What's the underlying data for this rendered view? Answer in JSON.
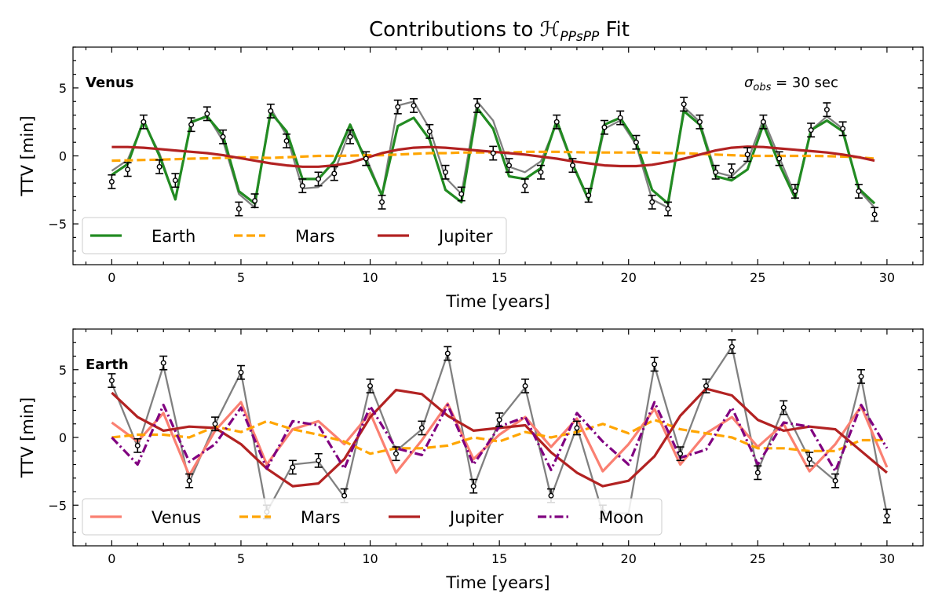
{
  "title": "Contributions to ℋ",
  "title_sub": "PPsPP",
  "title_suffix": " Fit",
  "chart_data": [
    {
      "type": "line",
      "panel_label": "Venus",
      "annotation": {
        "sigma": "σ",
        "sub": "obs",
        "text": " = 30 sec"
      },
      "xlabel": "Time [years]",
      "ylabel": "TTV [min]",
      "xlim": [
        -1.5,
        31.4
      ],
      "ylim": [
        -8,
        8
      ],
      "xticks": [
        0,
        5,
        10,
        15,
        20,
        25,
        30
      ],
      "yticks": [
        -5,
        0,
        5
      ],
      "grid": false,
      "legend": {
        "placement": "lower-left",
        "columns": 3
      },
      "x": [
        0,
        0.615,
        1.23,
        1.845,
        2.46,
        3.075,
        3.69,
        4.305,
        4.92,
        5.535,
        6.15,
        6.765,
        7.38,
        7.995,
        8.61,
        9.225,
        9.84,
        10.455,
        11.07,
        11.685,
        12.3,
        12.915,
        13.53,
        14.145,
        14.76,
        15.375,
        15.99,
        16.605,
        17.22,
        17.835,
        18.45,
        19.065,
        19.68,
        20.295,
        20.91,
        21.525,
        22.14,
        22.755,
        23.37,
        23.985,
        24.6,
        25.215,
        25.83,
        26.445,
        27.06,
        27.675,
        28.29,
        28.905,
        29.52
      ],
      "observed": [
        -1.9,
        -1.0,
        2.5,
        -0.8,
        -1.8,
        2.3,
        3.1,
        1.4,
        -3.9,
        -3.3,
        3.3,
        1.1,
        -2.2,
        -1.7,
        -1.3,
        1.4,
        -0.2,
        -3.4,
        3.6,
        3.7,
        1.8,
        -1.2,
        -2.8,
        3.7,
        0.2,
        -0.7,
        -2.2,
        -1.2,
        2.5,
        -0.7,
        -2.9,
        2.1,
        2.8,
        1.0,
        -3.4,
        -3.9,
        3.8,
        2.5,
        -1.2,
        -1.1,
        0.1,
        2.5,
        -0.2,
        -2.6,
        1.9,
        3.4,
        2.0,
        -2.6,
        -4.3
      ],
      "model": [
        -1.1,
        -0.3,
        2.5,
        0.2,
        -3.2,
        2.4,
        3.0,
        1.1,
        -2.8,
        -3.8,
        3.5,
        1.5,
        -2.4,
        -2.3,
        -1.2,
        1.9,
        -0.1,
        -2.9,
        3.7,
        4.0,
        2.0,
        -1.6,
        -2.8,
        4.0,
        2.6,
        -0.8,
        -1.2,
        -0.4,
        2.4,
        -0.7,
        -3.3,
        2.0,
        2.6,
        0.8,
        -3.2,
        -3.8,
        3.6,
        2.5,
        -1.2,
        -1.5,
        -0.4,
        2.7,
        -0.1,
        -2.9,
        1.9,
        2.9,
        2.0,
        -2.5,
        -3.8
      ],
      "series": [
        {
          "name": "Earth",
          "color": "#228b22",
          "dash": "solid",
          "values": [
            -1.4,
            -0.6,
            2.6,
            0.0,
            -3.2,
            2.5,
            2.9,
            1.5,
            -2.6,
            -3.5,
            3.2,
            1.8,
            -1.7,
            -1.7,
            -0.4,
            2.3,
            -0.4,
            -2.9,
            2.2,
            2.8,
            1.2,
            -2.5,
            -3.4,
            3.5,
            2.0,
            -1.5,
            -1.7,
            -0.9,
            2.6,
            -0.6,
            -3.2,
            2.3,
            2.8,
            1.0,
            -2.5,
            -3.5,
            3.3,
            2.3,
            -1.5,
            -1.8,
            -1.0,
            2.3,
            -0.6,
            -3.1,
            1.9,
            2.6,
            1.8,
            -2.4,
            -3.5
          ]
        },
        {
          "name": "Mars",
          "color": "#ffa500",
          "dash": "dashed",
          "values": [
            -0.35,
            -0.33,
            -0.3,
            -0.28,
            -0.24,
            -0.2,
            -0.18,
            -0.15,
            -0.1,
            -0.12,
            -0.15,
            -0.1,
            -0.05,
            0.0,
            0.0,
            0.02,
            0.05,
            0.05,
            0.1,
            0.15,
            0.2,
            0.2,
            0.25,
            0.25,
            0.25,
            0.25,
            0.3,
            0.3,
            0.3,
            0.28,
            0.25,
            0.25,
            0.25,
            0.25,
            0.25,
            0.2,
            0.2,
            0.15,
            0.1,
            0.05,
            0.0,
            0.0,
            0.0,
            0.0,
            0.0,
            -0.02,
            -0.05,
            -0.1,
            -0.2
          ]
        },
        {
          "name": "Jupiter",
          "color": "#b22222",
          "dash": "solid",
          "values": [
            0.65,
            0.65,
            0.6,
            0.5,
            0.4,
            0.3,
            0.2,
            0.05,
            -0.15,
            -0.35,
            -0.55,
            -0.7,
            -0.8,
            -0.8,
            -0.7,
            -0.5,
            -0.15,
            0.2,
            0.45,
            0.6,
            0.65,
            0.6,
            0.5,
            0.4,
            0.3,
            0.2,
            0.1,
            -0.05,
            -0.2,
            -0.4,
            -0.55,
            -0.7,
            -0.75,
            -0.75,
            -0.65,
            -0.45,
            -0.2,
            0.1,
            0.4,
            0.6,
            0.68,
            0.65,
            0.55,
            0.45,
            0.35,
            0.25,
            0.1,
            -0.1,
            -0.35
          ]
        }
      ]
    },
    {
      "type": "line",
      "panel_label": "Earth",
      "xlabel": "Time [years]",
      "ylabel": "TTV [min]",
      "xlim": [
        -1.5,
        31.4
      ],
      "ylim": [
        -8,
        8
      ],
      "xticks": [
        0,
        5,
        10,
        15,
        20,
        25,
        30
      ],
      "yticks": [
        -5,
        0,
        5
      ],
      "grid": false,
      "legend": {
        "placement": "lower-left",
        "columns": 4
      },
      "x": [
        0,
        1,
        2,
        3,
        4,
        5,
        6,
        7,
        8,
        9,
        10,
        11,
        12,
        13,
        14,
        15,
        16,
        17,
        18,
        19,
        20,
        21,
        22,
        23,
        24,
        25,
        26,
        27,
        28,
        29,
        30
      ],
      "observed": [
        4.2,
        -0.6,
        5.5,
        -3.2,
        1.0,
        4.8,
        -5.5,
        -2.2,
        -1.7,
        -4.3,
        3.8,
        -1.2,
        0.7,
        6.2,
        -3.6,
        1.3,
        3.8,
        -4.3,
        0.7,
        -5.5,
        null,
        5.4,
        -1.2,
        3.8,
        6.7,
        -2.6,
        2.2,
        -1.6,
        -3.2,
        4.5,
        -5.8
      ],
      "model": [
        4.0,
        -0.7,
        5.3,
        -3.3,
        1.0,
        4.8,
        -5.5,
        -2.0,
        -1.8,
        -4.4,
        3.9,
        -1.0,
        0.6,
        6.2,
        -3.7,
        1.3,
        3.7,
        -4.4,
        0.8,
        -5.6,
        -5.6,
        5.3,
        -1.2,
        3.8,
        6.7,
        -2.5,
        2.2,
        -1.6,
        -3.2,
        4.4,
        -5.7
      ],
      "series": [
        {
          "name": "Venus",
          "color": "#fa8072",
          "dash": "solid",
          "values": [
            1.1,
            -0.3,
            1.8,
            -2.8,
            0.5,
            2.6,
            -2.0,
            0.6,
            1.2,
            -0.5,
            1.8,
            -2.6,
            -0.2,
            2.5,
            -1.6,
            0.2,
            1.5,
            -0.7,
            1.4,
            -2.5,
            -0.5,
            2.1,
            -2.0,
            0.3,
            1.5,
            -0.7,
            1.0,
            -2.5,
            -0.5,
            2.3,
            -2.2
          ]
        },
        {
          "name": "Mars",
          "color": "#ffa500",
          "dash": "dashed",
          "values": [
            0.0,
            0.2,
            0.2,
            0.0,
            0.8,
            0.4,
            1.2,
            0.6,
            0.2,
            -0.3,
            -1.2,
            -0.8,
            -0.8,
            -0.6,
            0.0,
            -0.3,
            0.4,
            0.0,
            0.4,
            1.0,
            0.3,
            1.3,
            0.6,
            0.3,
            0.0,
            -0.8,
            -0.8,
            -1.0,
            -1.0,
            -0.2,
            -0.2
          ]
        },
        {
          "name": "Jupiter",
          "color": "#b22222",
          "dash": "solid",
          "values": [
            3.3,
            1.5,
            0.5,
            0.8,
            0.7,
            -0.5,
            -2.3,
            -3.6,
            -3.4,
            -1.6,
            1.5,
            3.5,
            3.2,
            1.6,
            0.5,
            0.7,
            0.9,
            -1.1,
            -2.6,
            -3.6,
            -3.2,
            -1.4,
            1.6,
            3.6,
            3.1,
            1.3,
            0.5,
            0.8,
            0.6,
            -1.0,
            -2.6
          ]
        },
        {
          "name": "Moon",
          "color": "#800080",
          "dash": "dashdot",
          "values": [
            0.0,
            -2.0,
            2.4,
            -1.8,
            -0.5,
            2.2,
            -2.3,
            1.2,
            0.9,
            -2.3,
            2.3,
            -0.8,
            -1.3,
            2.4,
            -2.0,
            0.8,
            1.5,
            -2.4,
            1.8,
            -0.3,
            -2.0,
            2.6,
            -1.5,
            -0.9,
            2.2,
            -2.0,
            1.1,
            0.8,
            -2.5,
            2.4,
            -0.8
          ]
        }
      ]
    }
  ]
}
